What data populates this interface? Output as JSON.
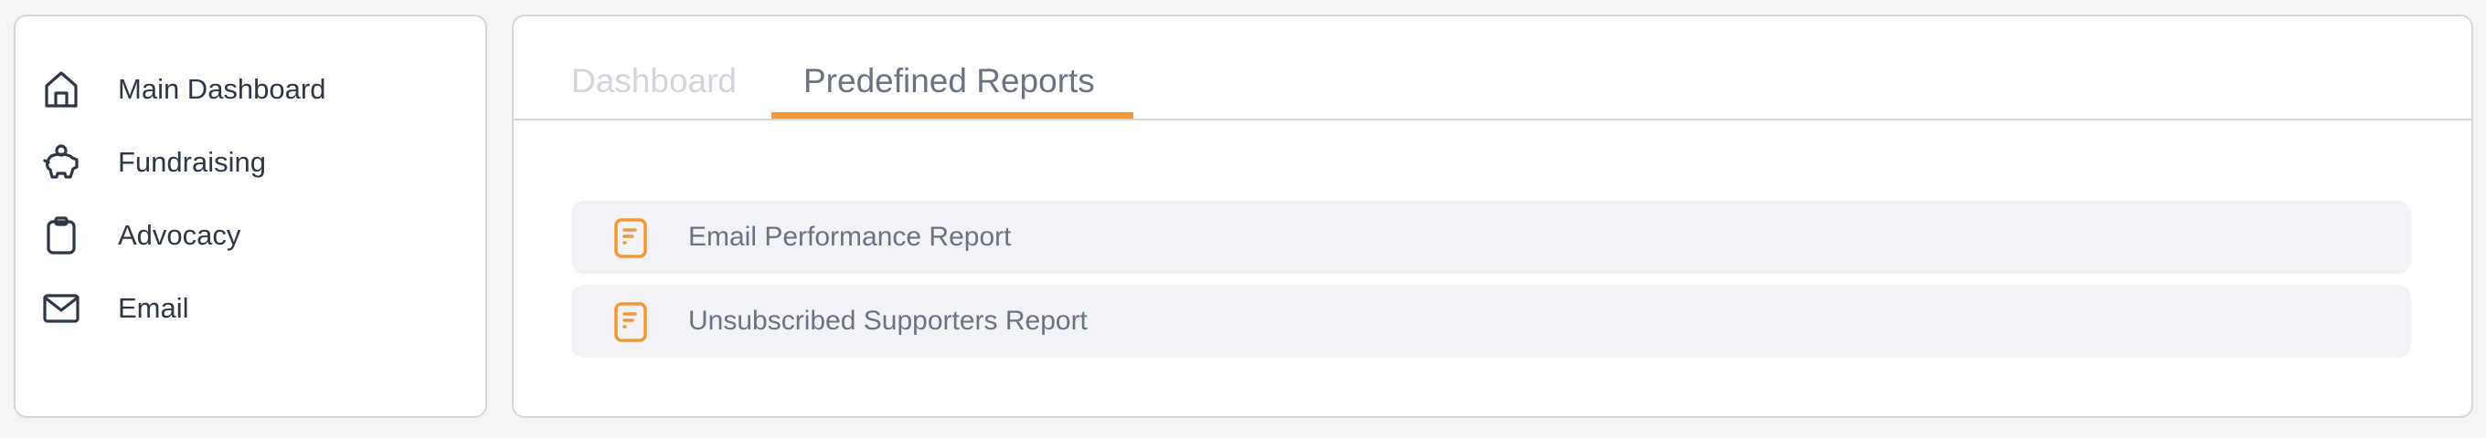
{
  "sidebar": {
    "items": [
      {
        "label": "Main Dashboard",
        "icon": "home-icon"
      },
      {
        "label": "Fundraising",
        "icon": "piggy-bank-icon"
      },
      {
        "label": "Advocacy",
        "icon": "clipboard-icon"
      },
      {
        "label": "Email",
        "icon": "envelope-icon"
      }
    ]
  },
  "tabs": [
    {
      "label": "Dashboard",
      "active": false
    },
    {
      "label": "Predefined Reports",
      "active": true
    }
  ],
  "reports": [
    {
      "label": "Email Performance Report",
      "icon": "report-document-icon"
    },
    {
      "label": "Unsubscribed Supporters Report",
      "icon": "report-document-icon"
    }
  ],
  "colors": {
    "accent": "#f0993a",
    "text_dark": "#2f3747",
    "text_muted": "#6b7280",
    "tab_inactive": "#d2d5db",
    "row_bg": "#f2f3f7",
    "page_bg": "#f4f4f4"
  }
}
